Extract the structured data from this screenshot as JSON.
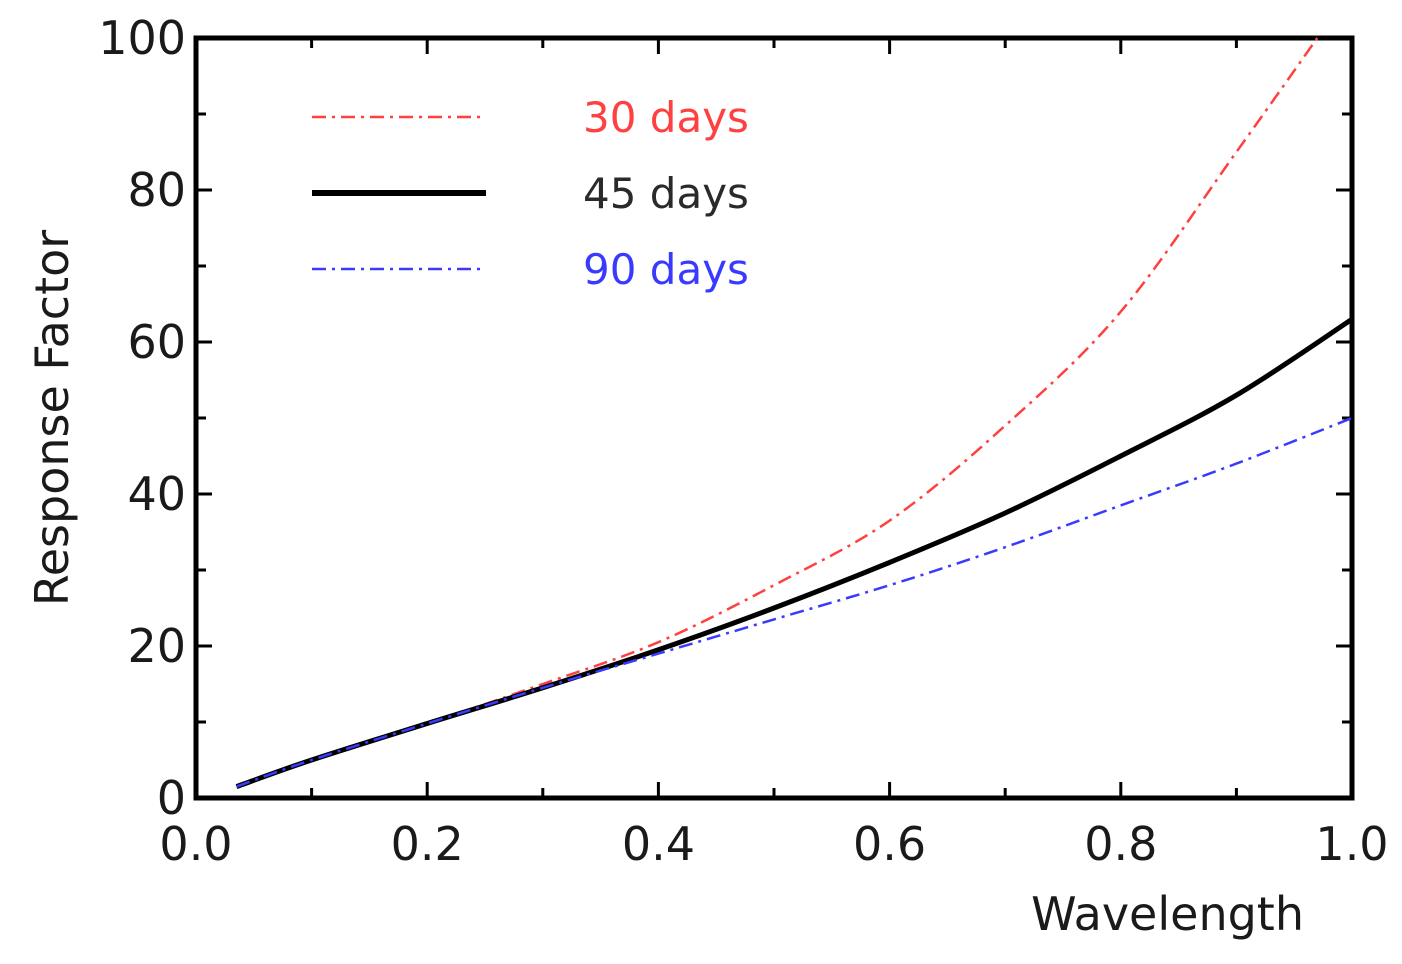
{
  "chart_data": {
    "type": "line",
    "title": "",
    "xlabel": "Wavelength",
    "ylabel": "Response Factor",
    "xlim": [
      0.0,
      1.0
    ],
    "ylim": [
      0,
      100
    ],
    "xticks": [
      0.0,
      0.2,
      0.4,
      0.6,
      0.8,
      1.0
    ],
    "xtick_labels": [
      "0.0",
      "0.2",
      "0.4",
      "0.6",
      "0.8",
      "1.0"
    ],
    "yticks": [
      0,
      20,
      40,
      60,
      80,
      100
    ],
    "ytick_labels": [
      "0",
      "20",
      "40",
      "60",
      "80",
      "100"
    ],
    "grid": false,
    "legend_position": "top-left",
    "series": [
      {
        "name": "30 days",
        "color": "#ff4040",
        "style": "dash-dot",
        "x": [
          0.035,
          0.1,
          0.2,
          0.3,
          0.4,
          0.5,
          0.6,
          0.7,
          0.8,
          0.9,
          0.97
        ],
        "y": [
          1.5,
          5,
          9.8,
          15,
          20.5,
          28,
          36.5,
          49,
          64,
          85,
          100
        ]
      },
      {
        "name": "45 days",
        "color": "#000000",
        "style": "solid",
        "x": [
          0.035,
          0.1,
          0.2,
          0.3,
          0.4,
          0.5,
          0.6,
          0.7,
          0.8,
          0.9,
          1.0
        ],
        "y": [
          1.5,
          5,
          9.8,
          14.5,
          19.5,
          25,
          31,
          37.5,
          45,
          53,
          63
        ]
      },
      {
        "name": "90 days",
        "color": "#3a3aff",
        "style": "dash-dot",
        "x": [
          0.035,
          0.1,
          0.2,
          0.3,
          0.4,
          0.5,
          0.6,
          0.7,
          0.8,
          0.9,
          1.0
        ],
        "y": [
          1.5,
          5,
          9.8,
          14.5,
          19,
          23.5,
          28,
          33,
          38.5,
          44,
          50
        ]
      }
    ]
  }
}
